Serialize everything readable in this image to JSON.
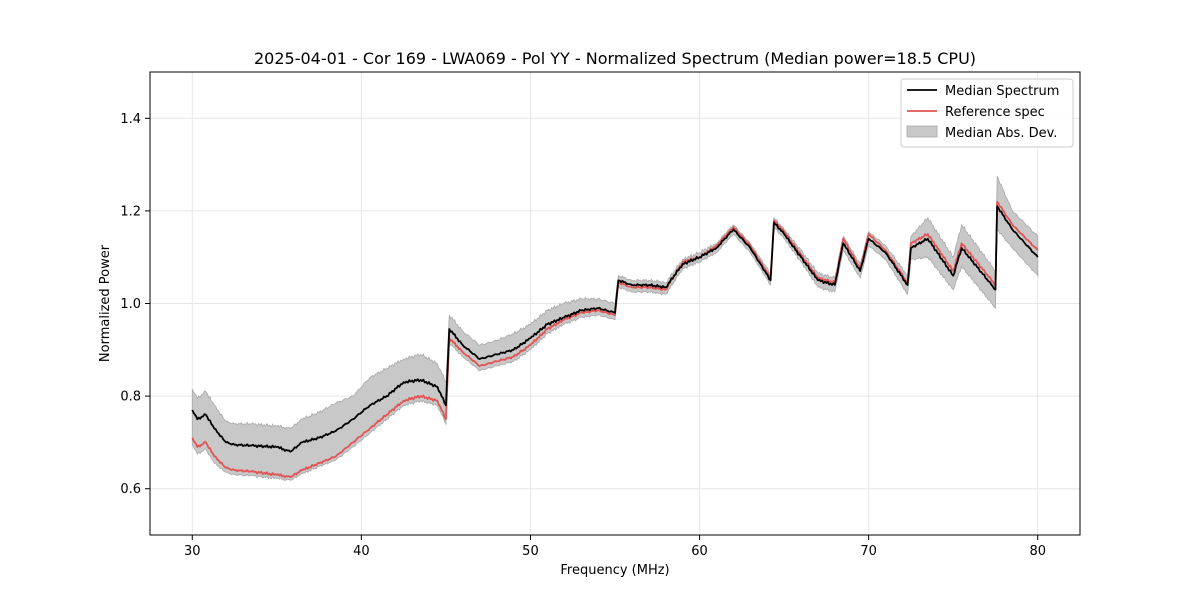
{
  "chart_data": {
    "type": "line",
    "title": "2025-04-01 - Cor 169 - LWA069 - Pol YY - Normalized Spectrum (Median power=18.5 CPU)",
    "xlabel": "Frequency (MHz)",
    "ylabel": "Normalized Power",
    "xlim": [
      27.5,
      82.5
    ],
    "ylim": [
      0.5,
      1.5
    ],
    "xticks": [
      30,
      40,
      50,
      60,
      70,
      80
    ],
    "yticks": [
      0.6,
      0.8,
      1.0,
      1.2,
      1.4
    ],
    "grid": true,
    "legend_position": "top-right",
    "colors": {
      "median": "#000000",
      "reference": "#e05555",
      "mad_fill": "#c8c8c8",
      "mad_edge": "#a8a8a8"
    },
    "series": [
      {
        "name": "Median Spectrum",
        "x": [
          30.0,
          30.3,
          30.8,
          31.3,
          32.0,
          32.5,
          33.5,
          35.0,
          35.8,
          36.5,
          37.5,
          38.5,
          39.5,
          40.5,
          41.5,
          42.5,
          43.5,
          44.5,
          45.0,
          45.2,
          46.0,
          47.0,
          48.0,
          49.0,
          50.0,
          51.0,
          52.0,
          53.0,
          54.0,
          55.0,
          55.2,
          56.0,
          57.0,
          58.0,
          59.0,
          60.0,
          61.0,
          62.0,
          63.0,
          64.2,
          64.4,
          65.0,
          66.0,
          67.0,
          68.0,
          68.5,
          69.5,
          70.0,
          71.0,
          72.3,
          72.5,
          73.5,
          75.0,
          75.5,
          77.5,
          77.6,
          78.5,
          80.0
        ],
        "values": [
          0.77,
          0.75,
          0.76,
          0.73,
          0.7,
          0.695,
          0.693,
          0.69,
          0.68,
          0.7,
          0.71,
          0.725,
          0.75,
          0.78,
          0.8,
          0.83,
          0.835,
          0.82,
          0.78,
          0.945,
          0.91,
          0.88,
          0.89,
          0.9,
          0.925,
          0.955,
          0.97,
          0.985,
          0.99,
          0.98,
          1.05,
          1.04,
          1.04,
          1.035,
          1.085,
          1.1,
          1.12,
          1.16,
          1.12,
          1.05,
          1.175,
          1.15,
          1.1,
          1.05,
          1.04,
          1.13,
          1.07,
          1.14,
          1.11,
          1.04,
          1.12,
          1.14,
          1.06,
          1.12,
          1.03,
          1.21,
          1.16,
          1.1
        ]
      },
      {
        "name": "Reference spec",
        "x": [
          30.0,
          30.3,
          30.8,
          31.3,
          32.0,
          32.5,
          33.5,
          35.0,
          35.8,
          36.5,
          37.5,
          38.5,
          39.5,
          40.5,
          41.5,
          42.5,
          43.5,
          44.5,
          45.0,
          45.2,
          46.0,
          47.0,
          48.0,
          49.0,
          50.0,
          51.0,
          52.0,
          53.0,
          54.0,
          55.0,
          55.2,
          56.0,
          57.0,
          58.0,
          59.0,
          60.0,
          61.0,
          62.0,
          63.0,
          64.2,
          64.4,
          65.0,
          66.0,
          67.0,
          68.0,
          68.5,
          69.5,
          70.0,
          71.0,
          72.3,
          72.5,
          73.5,
          75.0,
          75.5,
          77.5,
          77.6,
          78.5,
          80.0
        ],
        "values": [
          0.71,
          0.69,
          0.7,
          0.67,
          0.645,
          0.64,
          0.637,
          0.63,
          0.625,
          0.64,
          0.655,
          0.67,
          0.7,
          0.73,
          0.76,
          0.79,
          0.8,
          0.79,
          0.75,
          0.925,
          0.895,
          0.865,
          0.875,
          0.885,
          0.91,
          0.945,
          0.965,
          0.98,
          0.985,
          0.975,
          1.045,
          1.035,
          1.035,
          1.03,
          1.09,
          1.1,
          1.125,
          1.165,
          1.125,
          1.055,
          1.18,
          1.155,
          1.105,
          1.055,
          1.045,
          1.14,
          1.075,
          1.15,
          1.115,
          1.045,
          1.13,
          1.15,
          1.07,
          1.13,
          1.04,
          1.22,
          1.17,
          1.115
        ]
      }
    ],
    "band": {
      "name": "Median Abs. Dev.",
      "x": [
        30.0,
        30.3,
        30.8,
        31.3,
        32.0,
        32.5,
        33.5,
        35.0,
        35.8,
        36.5,
        37.5,
        38.5,
        39.5,
        40.5,
        41.5,
        42.5,
        43.5,
        44.5,
        45.0,
        45.2,
        46.0,
        47.0,
        48.0,
        49.0,
        50.0,
        51.0,
        52.0,
        53.0,
        54.0,
        55.0,
        55.2,
        56.0,
        57.0,
        58.0,
        59.0,
        60.0,
        61.0,
        62.0,
        63.0,
        64.2,
        64.4,
        65.0,
        66.0,
        67.0,
        68.0,
        68.5,
        69.5,
        70.0,
        71.0,
        72.3,
        72.5,
        73.5,
        75.0,
        75.5,
        77.5,
        77.6,
        78.5,
        80.0
      ],
      "upper": [
        0.815,
        0.795,
        0.81,
        0.78,
        0.745,
        0.74,
        0.74,
        0.735,
        0.73,
        0.75,
        0.765,
        0.785,
        0.8,
        0.84,
        0.86,
        0.88,
        0.89,
        0.87,
        0.83,
        0.975,
        0.94,
        0.91,
        0.92,
        0.935,
        0.955,
        0.985,
        1.0,
        1.01,
        1.01,
        1.0,
        1.06,
        1.05,
        1.05,
        1.045,
        1.095,
        1.11,
        1.13,
        1.17,
        1.13,
        1.065,
        1.185,
        1.16,
        1.115,
        1.065,
        1.055,
        1.145,
        1.085,
        1.155,
        1.125,
        1.06,
        1.145,
        1.185,
        1.1,
        1.17,
        1.07,
        1.275,
        1.2,
        1.145
      ],
      "lower": [
        0.695,
        0.675,
        0.685,
        0.655,
        0.635,
        0.63,
        0.628,
        0.622,
        0.618,
        0.632,
        0.648,
        0.662,
        0.69,
        0.72,
        0.75,
        0.78,
        0.79,
        0.78,
        0.74,
        0.915,
        0.885,
        0.855,
        0.865,
        0.875,
        0.9,
        0.935,
        0.955,
        0.97,
        0.975,
        0.965,
        1.035,
        1.025,
        1.025,
        1.02,
        1.075,
        1.09,
        1.11,
        1.15,
        1.11,
        1.04,
        1.165,
        1.14,
        1.09,
        1.035,
        1.025,
        1.115,
        1.055,
        1.125,
        1.095,
        1.02,
        1.095,
        1.1,
        1.03,
        1.08,
        0.99,
        1.16,
        1.12,
        1.06
      ]
    }
  }
}
